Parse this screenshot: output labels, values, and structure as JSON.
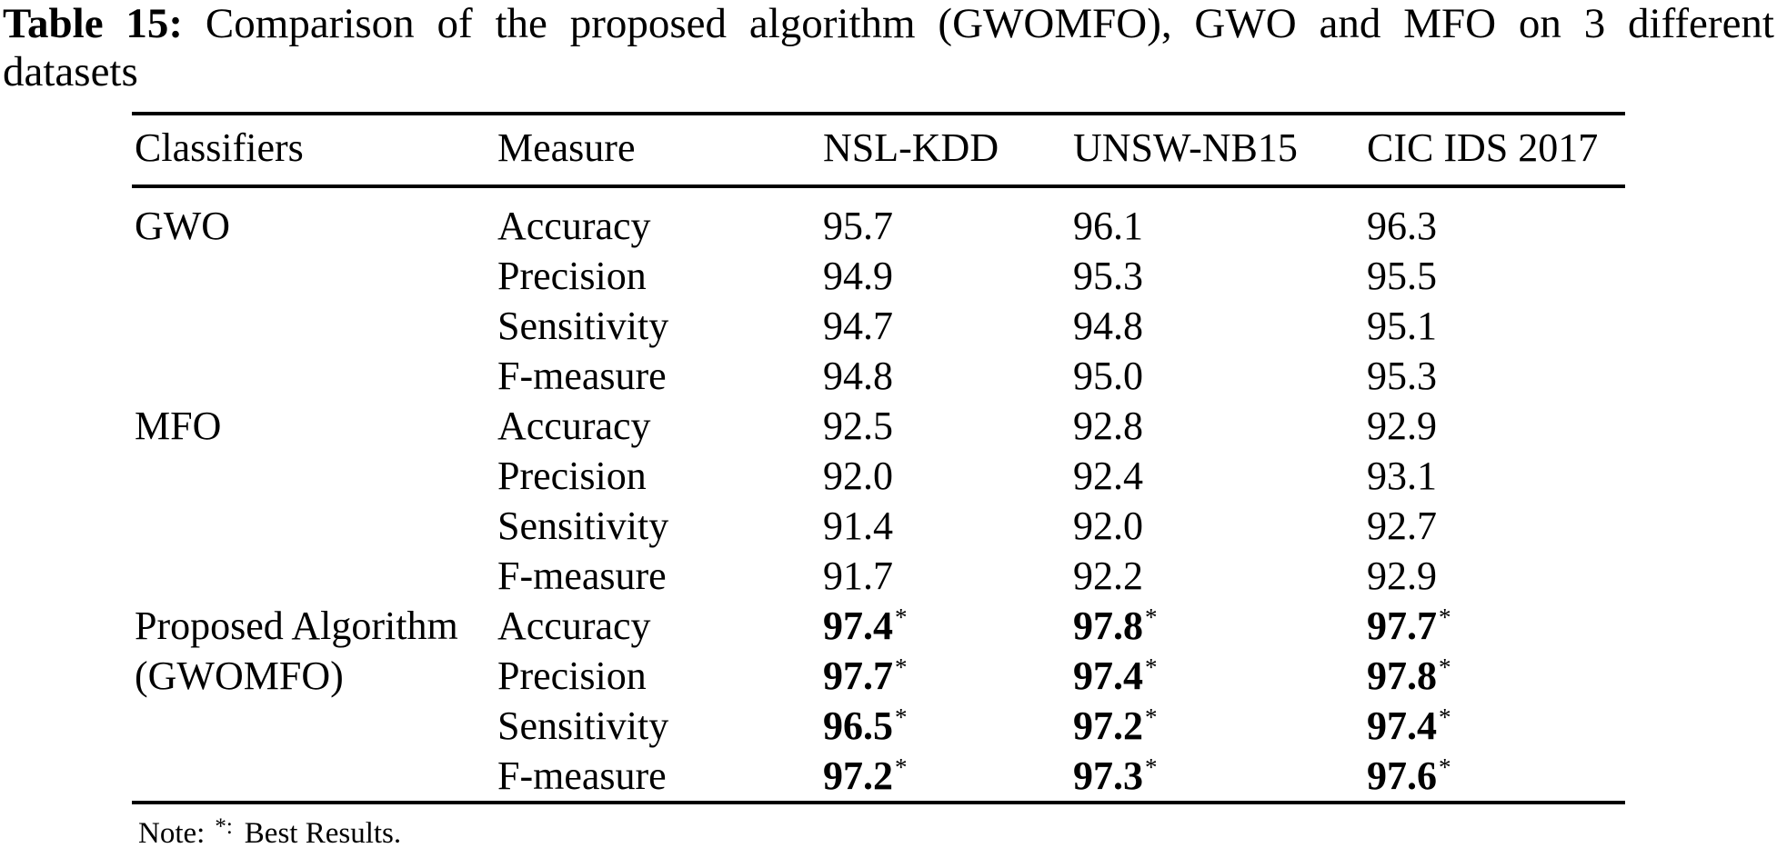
{
  "colors": {
    "background": "#ffffff",
    "text": "#000000",
    "rule": "#000000"
  },
  "caption": {
    "label": "Table 15:",
    "line1_rest": "Comparison of the proposed algorithm (GWOMFO), GWO and MFO on 3 different",
    "line2": "datasets"
  },
  "table": {
    "headers": [
      "Classifiers",
      "Measure",
      "NSL-KDD",
      "UNSW-NB15",
      "CIC IDS 2017"
    ],
    "rows": [
      {
        "classifier": "GWO",
        "measure": "Accuracy",
        "values": [
          "95.7",
          "96.1",
          "96.3"
        ],
        "markers": [
          "",
          "",
          ""
        ]
      },
      {
        "classifier": "",
        "measure": "Precision",
        "values": [
          "94.9",
          "95.3",
          "95.5"
        ],
        "markers": [
          "",
          "",
          ""
        ]
      },
      {
        "classifier": "",
        "measure": "Sensitivity",
        "values": [
          "94.7",
          "94.8",
          "95.1"
        ],
        "markers": [
          "",
          "",
          ""
        ]
      },
      {
        "classifier": "",
        "measure": "F-measure",
        "values": [
          "94.8",
          "95.0",
          "95.3"
        ],
        "markers": [
          "",
          "",
          ""
        ]
      },
      {
        "classifier": "MFO",
        "measure": "Accuracy",
        "values": [
          "92.5",
          "92.8",
          "92.9"
        ],
        "markers": [
          "",
          "",
          ""
        ]
      },
      {
        "classifier": "",
        "measure": "Precision",
        "values": [
          "92.0",
          "92.4",
          "93.1"
        ],
        "markers": [
          "",
          "",
          ""
        ]
      },
      {
        "classifier": "",
        "measure": "Sensitivity",
        "values": [
          "91.4",
          "92.0",
          "92.7"
        ],
        "markers": [
          "",
          "",
          ""
        ]
      },
      {
        "classifier": "",
        "measure": "F-measure",
        "values": [
          "91.7",
          "92.2",
          "92.9"
        ],
        "markers": [
          "",
          "",
          ""
        ]
      },
      {
        "classifier": "Proposed Algorithm",
        "measure": "Accuracy",
        "values": [
          "97.4",
          "97.8",
          "97.7"
        ],
        "markers": [
          "*",
          "*",
          "*"
        ]
      },
      {
        "classifier": "(GWOMFO)",
        "measure": "Precision",
        "values": [
          "97.7",
          "97.4",
          "97.8"
        ],
        "markers": [
          "*",
          "*",
          "*"
        ]
      },
      {
        "classifier": "",
        "measure": "Sensitivity",
        "values": [
          "96.5",
          "97.2",
          "97.4"
        ],
        "markers": [
          "*",
          "*",
          "*"
        ]
      },
      {
        "classifier": "",
        "measure": "F-measure",
        "values": [
          "97.2",
          "97.3",
          "97.6"
        ],
        "markers": [
          "*",
          "*",
          "*"
        ]
      }
    ]
  },
  "note": {
    "prefix": "Note:",
    "marker": "*:",
    "text": "Best Results."
  }
}
